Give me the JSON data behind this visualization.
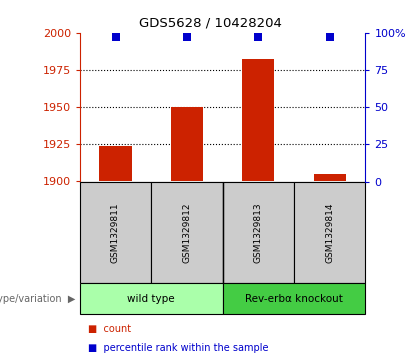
{
  "title": "GDS5628 / 10428204",
  "samples": [
    "GSM1329811",
    "GSM1329812",
    "GSM1329813",
    "GSM1329814"
  ],
  "counts": [
    1924,
    1950,
    1982,
    1905
  ],
  "percentile_ranks": [
    97,
    97,
    97,
    97
  ],
  "ylim_left": [
    1900,
    2000
  ],
  "ylim_right": [
    0,
    100
  ],
  "yticks_left": [
    1900,
    1925,
    1950,
    1975,
    2000
  ],
  "yticks_right": [
    0,
    25,
    50,
    75,
    100
  ],
  "ytick_labels_right": [
    "0",
    "25",
    "50",
    "75",
    "100%"
  ],
  "bar_color": "#cc2200",
  "dot_color": "#0000cc",
  "groups": [
    {
      "label": "wild type",
      "samples_idx": [
        0,
        1
      ],
      "color": "#aaffaa"
    },
    {
      "label": "Rev-erbα knockout",
      "samples_idx": [
        2,
        3
      ],
      "color": "#44cc44"
    }
  ],
  "genotype_label": "genotype/variation",
  "legend_items": [
    {
      "color": "#cc2200",
      "label": "count"
    },
    {
      "color": "#0000cc",
      "label": "percentile rank within the sample"
    }
  ],
  "bar_width": 0.45,
  "dot_size": 35,
  "grid_lines": [
    1925,
    1950,
    1975
  ],
  "sample_cell_color": "#cccccc",
  "arrow_char": "▶",
  "square_char": "■"
}
